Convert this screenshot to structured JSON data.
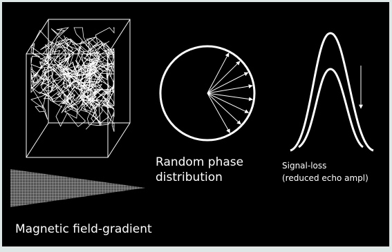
{
  "labels": {
    "phase": [
      "Random phase",
      "distribution"
    ],
    "signal": [
      "Signal-loss",
      "(reduced echo ampl)"
    ],
    "gradient": "Magnetic field-gradient"
  }
}
